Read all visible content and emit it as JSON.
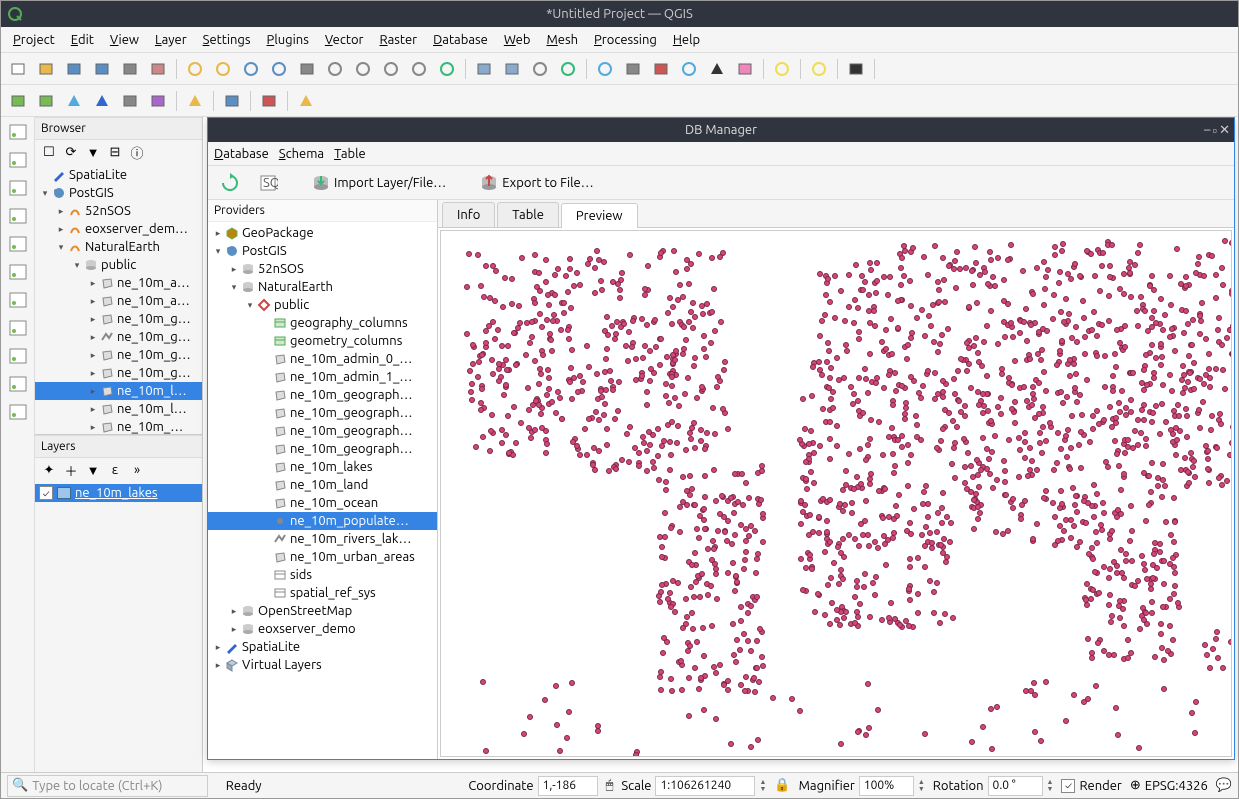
{
  "title": "*Untitled Project — QGIS",
  "menus": [
    "Project",
    "Edit",
    "View",
    "Layer",
    "Settings",
    "Plugins",
    "Vector",
    "Raster",
    "Database",
    "Web",
    "Mesh",
    "Processing",
    "Help"
  ],
  "browser": {
    "title": "Browser",
    "items": [
      {
        "d": 0,
        "exp": null,
        "icon": "pen",
        "label": "SpatiaLite"
      },
      {
        "d": 0,
        "exp": "open",
        "icon": "elephant",
        "label": "PostGIS"
      },
      {
        "d": 1,
        "exp": "closed",
        "icon": "orange",
        "label": "52nSOS"
      },
      {
        "d": 1,
        "exp": "closed",
        "icon": "orange",
        "label": "eoxserver_dem…"
      },
      {
        "d": 1,
        "exp": "open",
        "icon": "orange",
        "label": "NaturalEarth"
      },
      {
        "d": 2,
        "exp": "open",
        "icon": "db",
        "label": "public"
      },
      {
        "d": 3,
        "exp": "closed",
        "icon": "poly",
        "label": "ne_10m_a…"
      },
      {
        "d": 3,
        "exp": "closed",
        "icon": "poly",
        "label": "ne_10m_a…"
      },
      {
        "d": 3,
        "exp": "closed",
        "icon": "poly",
        "label": "ne_10m_g…"
      },
      {
        "d": 3,
        "exp": "closed",
        "icon": "line",
        "label": "ne_10m_g…"
      },
      {
        "d": 3,
        "exp": "closed",
        "icon": "poly",
        "label": "ne_10m_g…"
      },
      {
        "d": 3,
        "exp": "closed",
        "icon": "poly",
        "label": "ne_10m_g…"
      },
      {
        "d": 3,
        "exp": "closed",
        "icon": "poly",
        "label": "ne_10m_l…",
        "sel": true
      },
      {
        "d": 3,
        "exp": "closed",
        "icon": "poly",
        "label": "ne_10m_l…"
      },
      {
        "d": 3,
        "exp": "closed",
        "icon": "poly",
        "label": "ne_10m_…"
      }
    ]
  },
  "layers": {
    "title": "Layers",
    "row": {
      "checked": true,
      "color": "#9fc6e7",
      "label": "ne_10m_lakes"
    }
  },
  "dbm": {
    "title": "DB Manager",
    "menus": [
      "Database",
      "Schema",
      "Table"
    ],
    "toolbar": {
      "refresh": "",
      "sql": "",
      "import": "Import Layer/File…",
      "export": "Export to File…"
    },
    "providers_label": "Providers",
    "tree": [
      {
        "d": 0,
        "exp": "closed",
        "icon": "geopkg",
        "label": "GeoPackage"
      },
      {
        "d": 0,
        "exp": "open",
        "icon": "elephant",
        "label": "PostGIS"
      },
      {
        "d": 1,
        "exp": "closed",
        "icon": "db",
        "label": "52nSOS"
      },
      {
        "d": 1,
        "exp": "open",
        "icon": "db",
        "label": "NaturalEarth"
      },
      {
        "d": 2,
        "exp": "open",
        "icon": "schema",
        "label": "public"
      },
      {
        "d": 3,
        "exp": null,
        "icon": "tbl-g",
        "label": "geography_columns"
      },
      {
        "d": 3,
        "exp": null,
        "icon": "tbl-g",
        "label": "geometry_columns"
      },
      {
        "d": 3,
        "exp": null,
        "icon": "poly",
        "label": "ne_10m_admin_0_…"
      },
      {
        "d": 3,
        "exp": null,
        "icon": "poly",
        "label": "ne_10m_admin_1_…"
      },
      {
        "d": 3,
        "exp": null,
        "icon": "poly",
        "label": "ne_10m_geograph…"
      },
      {
        "d": 3,
        "exp": null,
        "icon": "poly",
        "label": "ne_10m_geograph…"
      },
      {
        "d": 3,
        "exp": null,
        "icon": "poly",
        "label": "ne_10m_geograph…"
      },
      {
        "d": 3,
        "exp": null,
        "icon": "poly",
        "label": "ne_10m_geograph…"
      },
      {
        "d": 3,
        "exp": null,
        "icon": "poly",
        "label": "ne_10m_lakes"
      },
      {
        "d": 3,
        "exp": null,
        "icon": "poly",
        "label": "ne_10m_land"
      },
      {
        "d": 3,
        "exp": null,
        "icon": "poly",
        "label": "ne_10m_ocean"
      },
      {
        "d": 3,
        "exp": null,
        "icon": "point",
        "label": "ne_10m_populate…",
        "sel": true
      },
      {
        "d": 3,
        "exp": null,
        "icon": "line",
        "label": "ne_10m_rivers_lak…"
      },
      {
        "d": 3,
        "exp": null,
        "icon": "poly",
        "label": "ne_10m_urban_areas"
      },
      {
        "d": 3,
        "exp": null,
        "icon": "tbl",
        "label": "sids"
      },
      {
        "d": 3,
        "exp": null,
        "icon": "tbl",
        "label": "spatial_ref_sys"
      },
      {
        "d": 1,
        "exp": "closed",
        "icon": "db",
        "label": "OpenStreetMap"
      },
      {
        "d": 1,
        "exp": "closed",
        "icon": "db",
        "label": "eoxserver_demo"
      },
      {
        "d": 0,
        "exp": "closed",
        "icon": "pen",
        "label": "SpatiaLite"
      },
      {
        "d": 0,
        "exp": "closed",
        "icon": "cube",
        "label": "Virtual Layers"
      }
    ],
    "tabs": [
      "Info",
      "Table",
      "Preview"
    ],
    "active_tab": 2,
    "preview": {
      "dot_color": "#d5447a",
      "dot_border": "#7a2846",
      "dot_size": 6
    }
  },
  "status": {
    "locate_placeholder": "Type to locate (Ctrl+K)",
    "ready": "Ready",
    "coord_label": "Coordinate",
    "coord_value": "1,-186",
    "scale_label": "Scale",
    "scale_value": "1:106261240",
    "mag_label": "Magnifier",
    "mag_value": "100%",
    "rot_label": "Rotation",
    "rot_value": "0.0 °",
    "render_label": "Render",
    "crs": "EPSG:4326"
  }
}
